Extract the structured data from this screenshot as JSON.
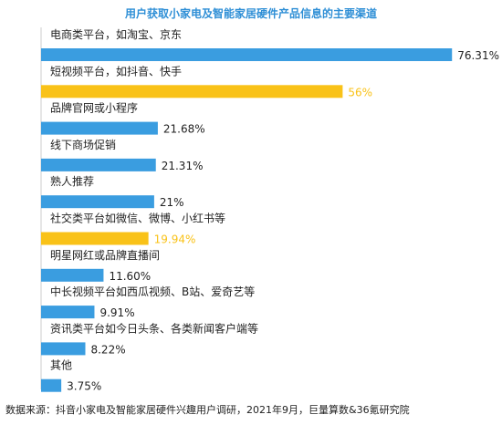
{
  "colors": {
    "title": "#2f8fd6",
    "bar": "#3a9de0",
    "highlight": "#f9c218",
    "axis": "#cccccc",
    "label": "#222222"
  },
  "chart_data": {
    "type": "bar",
    "orientation": "horizontal",
    "title": "用户获取小家电及智能家居硬件产品信息的主要渠道",
    "categories": [
      "电商类平台，如淘宝、京东",
      "短视频平台，如抖音、快手",
      "品牌官网或小程序",
      "线下商场促销",
      "熟人推荐",
      "社交类平台如微信、微博、小红书等",
      "明星网红或品牌直播间",
      "中长视频平台如西瓜视频、B站、爱奇艺等",
      "资讯类平台如今日头条、各类新闻客户端等",
      "其他"
    ],
    "values": [
      76.31,
      56,
      21.68,
      21.31,
      21,
      19.94,
      11.6,
      9.91,
      8.22,
      3.75
    ],
    "value_labels": [
      "76.31%",
      "56%",
      "21.68%",
      "21.31%",
      "21%",
      "19.94%",
      "11.60%",
      "9.91%",
      "8.22%",
      "3.75%"
    ],
    "highlighted": [
      false,
      true,
      false,
      false,
      false,
      true,
      false,
      false,
      false,
      false
    ],
    "xlim": [
      0,
      100
    ],
    "grid": false,
    "legend": "none"
  },
  "source_note": "数据来源：抖音小家电及智能家居硬件兴趣用户调研，2021年9月，巨量算数&36氪研究院"
}
